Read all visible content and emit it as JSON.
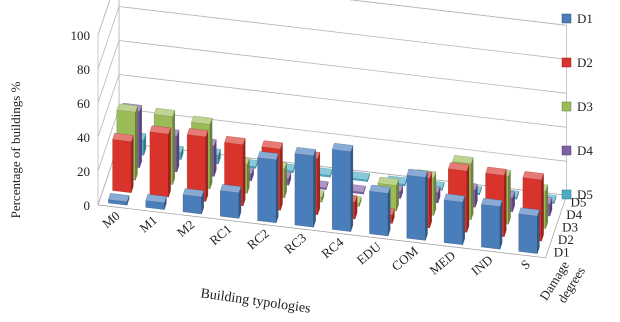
{
  "chart_data": {
    "type": "bar",
    "categories": [
      "M0",
      "M1",
      "M2",
      "RC1",
      "RC2",
      "RC3",
      "RC4",
      "EDU",
      "COM",
      "MED",
      "IND",
      "S"
    ],
    "series": [
      {
        "name": "D1",
        "color": "#4a7ebb",
        "values": [
          2,
          4,
          10,
          15,
          37,
          42,
          47,
          25,
          37,
          25,
          25,
          22
        ]
      },
      {
        "name": "D2",
        "color": "#d9342b",
        "values": [
          30,
          37,
          38,
          36,
          36,
          33,
          10,
          5,
          29,
          36,
          36,
          36
        ]
      },
      {
        "name": "D3",
        "color": "#9bbb59",
        "values": [
          40,
          40,
          38,
          17,
          17,
          3,
          2,
          15,
          22,
          33,
          28,
          22
        ]
      },
      {
        "name": "D4",
        "color": "#7f5fa8",
        "values": [
          33,
          21,
          18,
          4,
          4,
          1,
          1,
          4,
          6,
          10,
          8,
          7
        ]
      },
      {
        "name": "D5",
        "color": "#4bacc6",
        "values": [
          9,
          4,
          5,
          1,
          1,
          1,
          1,
          1,
          1,
          1,
          1,
          1
        ]
      }
    ],
    "y_ticks": [
      0,
      20,
      40,
      60,
      80,
      100
    ],
    "ylim": [
      0,
      100
    ],
    "ylabel": "Percentage of buildings %",
    "xlabel": "Building typologies",
    "zlabel": "Damage degrees",
    "legend_position": "right",
    "grid": true
  }
}
